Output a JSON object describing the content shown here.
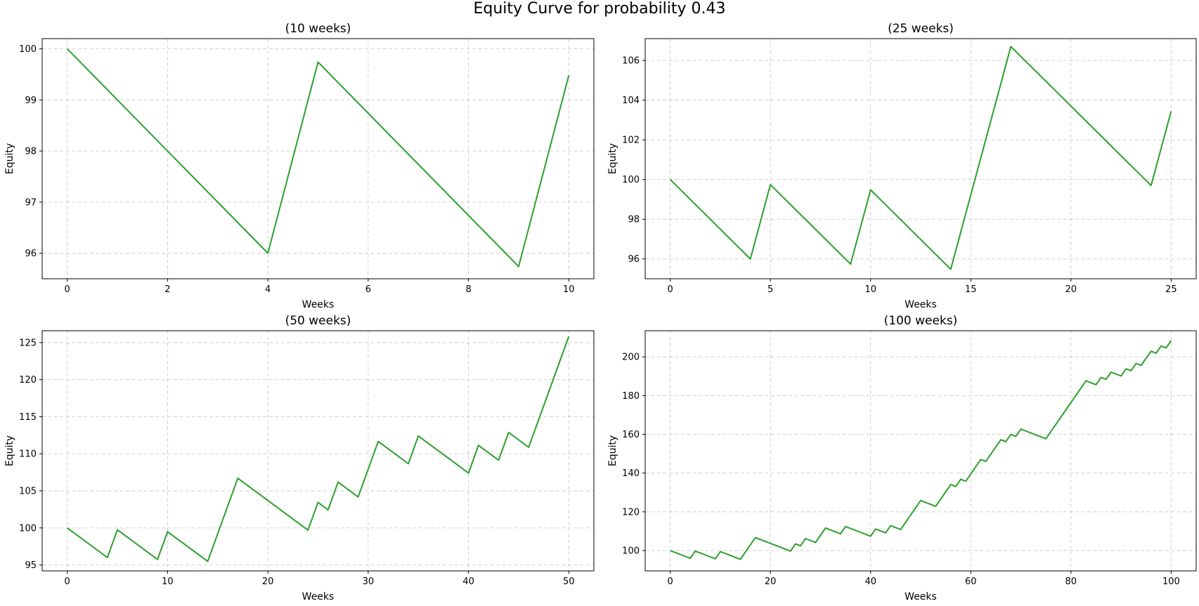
{
  "figure": {
    "title": "Equity Curve for probability 0.43",
    "line_color": "#2ca02c",
    "grid": true
  },
  "chart_data": [
    {
      "type": "line",
      "title": "(10 weeks)",
      "xlabel": "Weeks",
      "ylabel": "Equity",
      "xlim": [
        -0.5,
        10.5
      ],
      "ylim": [
        95.5,
        100.2
      ],
      "xticks": [
        0,
        2,
        4,
        6,
        8,
        10
      ],
      "yticks": [
        96,
        97,
        98,
        99,
        100
      ],
      "x": [
        0,
        4,
        5,
        9,
        10
      ],
      "y": [
        100.0,
        96.0,
        99.74,
        95.74,
        99.48
      ]
    },
    {
      "type": "line",
      "title": "(25 weeks)",
      "xlabel": "Weeks",
      "ylabel": "Equity",
      "xlim": [
        -1.25,
        26.25
      ],
      "ylim": [
        95.0,
        107.1
      ],
      "xticks": [
        0,
        5,
        10,
        15,
        20,
        25
      ],
      "yticks": [
        96,
        98,
        100,
        102,
        104,
        106
      ],
      "x": [
        0,
        4,
        5,
        9,
        10,
        14,
        17,
        24,
        25
      ],
      "y": [
        100.0,
        96.0,
        99.74,
        95.74,
        99.48,
        95.48,
        106.7,
        99.7,
        103.44
      ]
    },
    {
      "type": "line",
      "title": "(50 weeks)",
      "xlabel": "Weeks",
      "ylabel": "Equity",
      "xlim": [
        -2.5,
        52.5
      ],
      "ylim": [
        94.2,
        126.6
      ],
      "xticks": [
        0,
        10,
        20,
        30,
        40,
        50
      ],
      "yticks": [
        95,
        100,
        105,
        110,
        115,
        120,
        125
      ],
      "x": [
        0,
        4,
        5,
        9,
        10,
        14,
        17,
        24,
        25,
        26,
        27,
        29,
        31,
        34,
        35,
        40,
        41,
        43,
        44,
        46,
        50
      ],
      "y": [
        100.0,
        96.0,
        99.74,
        95.74,
        99.48,
        95.48,
        106.7,
        99.7,
        103.44,
        102.44,
        106.18,
        104.18,
        111.66,
        108.66,
        112.4,
        107.4,
        111.14,
        109.14,
        112.88,
        110.88,
        125.84
      ]
    },
    {
      "type": "line",
      "title": "(100 weeks)",
      "xlabel": "Weeks",
      "ylabel": "Equity",
      "xlim": [
        -5,
        105
      ],
      "ylim": [
        89.5,
        213.5
      ],
      "xticks": [
        0,
        20,
        40,
        60,
        80,
        100
      ],
      "yticks": [
        100,
        120,
        140,
        160,
        180,
        200
      ],
      "x": [
        0,
        4,
        5,
        9,
        10,
        14,
        17,
        24,
        25,
        26,
        27,
        29,
        31,
        34,
        35,
        40,
        41,
        43,
        44,
        46,
        50,
        53,
        56,
        57,
        58,
        59,
        62,
        63,
        66,
        67,
        68,
        69,
        70,
        75,
        83,
        85,
        86,
        87,
        88,
        90,
        91,
        92,
        93,
        94,
        95,
        96,
        97,
        98,
        99,
        100
      ],
      "y": [
        100.0,
        96.0,
        99.74,
        95.74,
        99.48,
        95.48,
        106.7,
        99.7,
        103.44,
        102.44,
        106.18,
        104.18,
        111.66,
        108.66,
        112.4,
        107.4,
        111.14,
        109.14,
        112.88,
        110.88,
        125.84,
        122.84,
        134.06,
        133.06,
        136.8,
        135.8,
        147.02,
        146.02,
        157.24,
        156.24,
        159.98,
        158.98,
        162.72,
        157.72,
        187.64,
        185.64,
        189.38,
        188.38,
        192.12,
        190.12,
        193.86,
        192.86,
        196.6,
        195.6,
        199.34,
        202.9,
        201.9,
        205.64,
        204.64,
        208.38
      ]
    }
  ]
}
